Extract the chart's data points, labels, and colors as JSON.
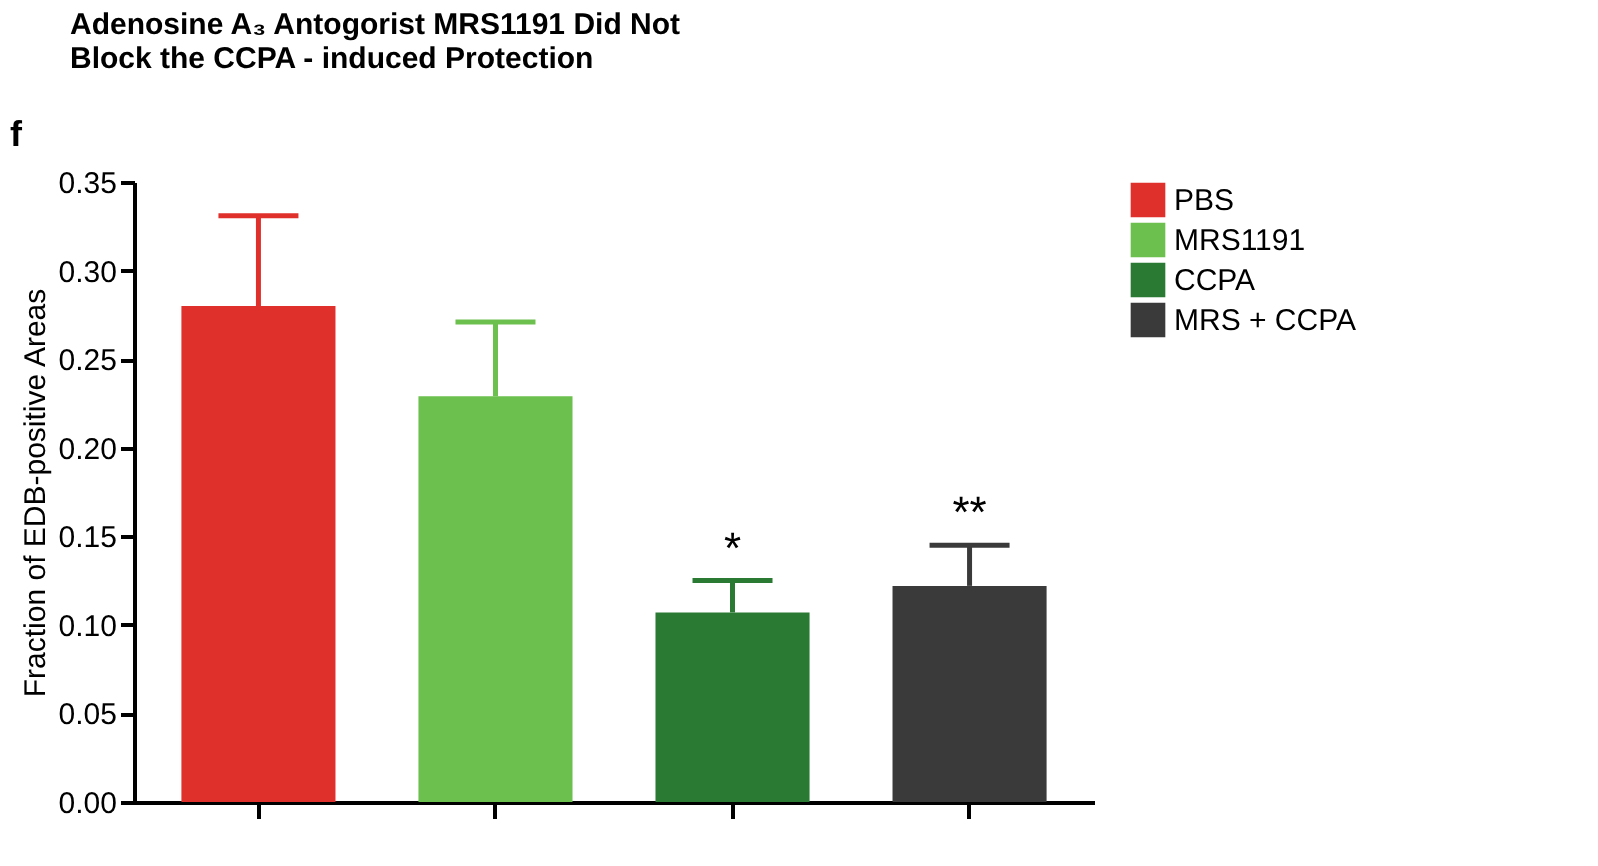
{
  "chart_data": {
    "type": "bar",
    "title": "Adenosine A₃ Antogorist MRS1191 Did Not Block the CCPA - induced Protection",
    "ylabel": "Fraction of EDB-positive Areas",
    "categories": [
      null,
      null,
      null,
      null
    ],
    "series": [
      {
        "name": "PBS",
        "color": "#e0302c",
        "values": [
          0.28,
          null,
          null,
          null
        ],
        "errors": [
          [
            0.28,
            0.331
          ],
          null,
          null,
          null
        ]
      },
      {
        "name": "MRS1191",
        "color": "#6cc04e",
        "values": [
          null,
          0.229,
          null,
          null
        ],
        "errors": [
          null,
          [
            0.229,
            0.271
          ],
          null,
          null
        ]
      },
      {
        "name": "CCPA",
        "color": "#2a7a34",
        "values": [
          null,
          null,
          0.107,
          null
        ],
        "errors": [
          null,
          null,
          [
            0.107,
            0.125
          ],
          null
        ]
      },
      {
        "name": "MRS + CCPA",
        "color": "#3a3a3a",
        "values": [
          null,
          null,
          null,
          0.122
        ],
        "errors": [
          null,
          null,
          null,
          [
            0.122,
            0.145
          ]
        ]
      }
    ],
    "ylim": [
      0,
      0.35
    ],
    "yticks": [
      {
        "value": 0,
        "label": "0.00"
      },
      0.05,
      {
        "value": 0.1,
        "label": "0.10"
      },
      0.15,
      {
        "value": 0.2,
        "label": "0.20"
      },
      0.25,
      {
        "value": 0.3,
        "label": "0.30"
      },
      0.35
    ],
    "annotations": [
      "f",
      "*",
      "**"
    ],
    "legend": "right",
    "grid": false,
    "tick_labels": "y"
  }
}
